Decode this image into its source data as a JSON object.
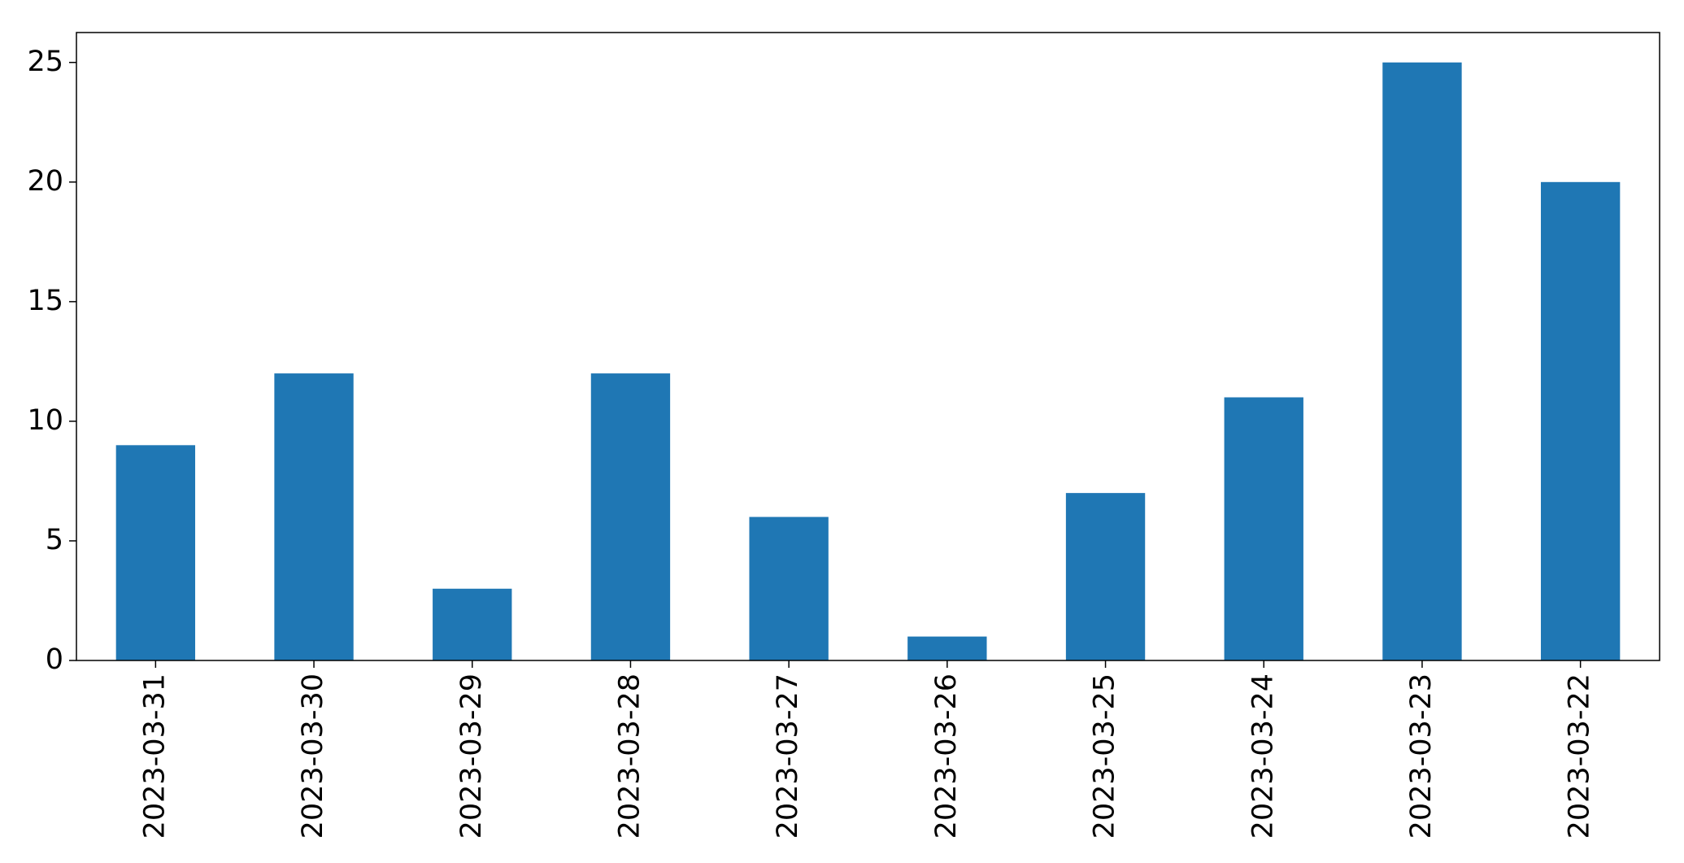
{
  "chart_data": {
    "type": "bar",
    "categories": [
      "2023-03-31",
      "2023-03-30",
      "2023-03-29",
      "2023-03-28",
      "2023-03-27",
      "2023-03-26",
      "2023-03-25",
      "2023-03-24",
      "2023-03-23",
      "2023-03-22"
    ],
    "values": [
      9,
      12,
      3,
      12,
      6,
      1,
      7,
      11,
      25,
      20
    ],
    "color": "#1f77b4",
    "ylim": [
      0,
      26.25
    ],
    "yticks": [
      0,
      5,
      10,
      15,
      20,
      25
    ],
    "grid": false
  }
}
